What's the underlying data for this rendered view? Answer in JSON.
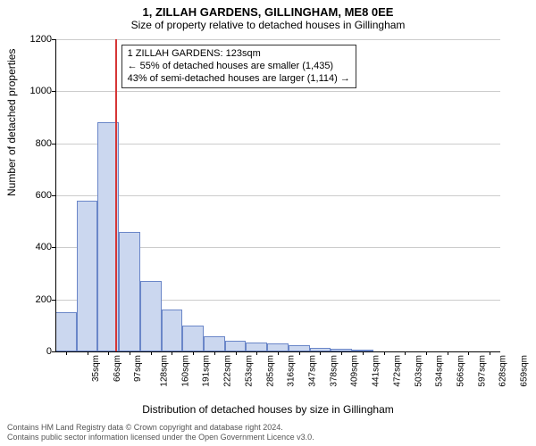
{
  "titles": {
    "main": "1, ZILLAH GARDENS, GILLINGHAM, ME8 0EE",
    "sub": "Size of property relative to detached houses in Gillingham",
    "xlabel": "Distribution of detached houses by size in Gillingham",
    "ylabel": "Number of detached properties"
  },
  "chart": {
    "type": "histogram",
    "ylim": [
      0,
      1200
    ],
    "ytick_step": 200,
    "x_categories": [
      "35sqm",
      "66sqm",
      "97sqm",
      "128sqm",
      "160sqm",
      "191sqm",
      "222sqm",
      "253sqm",
      "285sqm",
      "316sqm",
      "347sqm",
      "378sqm",
      "409sqm",
      "441sqm",
      "472sqm",
      "503sqm",
      "534sqm",
      "566sqm",
      "597sqm",
      "628sqm",
      "659sqm"
    ],
    "bars": [
      150,
      580,
      880,
      460,
      270,
      160,
      100,
      60,
      40,
      35,
      30,
      25,
      15,
      10,
      5,
      0,
      0,
      0,
      0,
      0,
      0
    ],
    "bar_fill": "#cbd7ef",
    "bar_stroke": "#6a86c8",
    "vline_x_index": 2.85,
    "vline_color": "#d63636",
    "grid_color": "#cccccc",
    "background": "#ffffff"
  },
  "annotation": {
    "line1": "1 ZILLAH GARDENS: 123sqm",
    "line2": "← 55% of detached houses are smaller (1,435)",
    "line3": "43% of semi-detached houses are larger (1,114) →"
  },
  "footer": {
    "line1": "Contains HM Land Registry data © Crown copyright and database right 2024.",
    "line2": "Contains public sector information licensed under the Open Government Licence v3.0."
  },
  "fonts": {
    "title_size": 13,
    "subtitle_size": 12,
    "axis_label_size": 12,
    "tick_size": 11,
    "annotation_size": 11,
    "footer_size": 9
  }
}
